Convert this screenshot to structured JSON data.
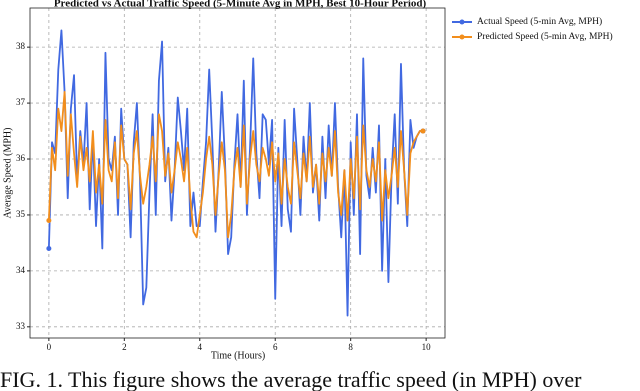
{
  "chart_data": {
    "type": "line",
    "title": "Predicted vs Actual Traffic Speed (5-Minute Avg in MPH, Best 10-Hour Period)",
    "x_label": "Time (Hours)",
    "y_label": "Average Speed (MPH)",
    "x": [
      0,
      0.083,
      0.167,
      0.25,
      0.333,
      0.417,
      0.5,
      0.583,
      0.667,
      0.75,
      0.833,
      0.917,
      1,
      1.083,
      1.167,
      1.25,
      1.333,
      1.417,
      1.5,
      1.583,
      1.667,
      1.75,
      1.833,
      1.917,
      2,
      2.083,
      2.167,
      2.25,
      2.333,
      2.417,
      2.5,
      2.583,
      2.667,
      2.75,
      2.833,
      2.917,
      3,
      3.083,
      3.167,
      3.25,
      3.333,
      3.417,
      3.5,
      3.583,
      3.667,
      3.75,
      3.833,
      3.917,
      4,
      4.083,
      4.167,
      4.25,
      4.333,
      4.417,
      4.5,
      4.583,
      4.667,
      4.75,
      4.833,
      4.917,
      5,
      5.083,
      5.167,
      5.25,
      5.333,
      5.417,
      5.5,
      5.583,
      5.667,
      5.75,
      5.833,
      5.917,
      6,
      6.083,
      6.167,
      6.25,
      6.333,
      6.417,
      6.5,
      6.583,
      6.667,
      6.75,
      6.833,
      6.917,
      7,
      7.083,
      7.167,
      7.25,
      7.333,
      7.417,
      7.5,
      7.583,
      7.667,
      7.75,
      7.833,
      7.917,
      8,
      8.083,
      8.167,
      8.25,
      8.333,
      8.417,
      8.5,
      8.583,
      8.667,
      8.75,
      8.833,
      8.917,
      9,
      9.083,
      9.167,
      9.25,
      9.333,
      9.417,
      9.5,
      9.583,
      9.667,
      9.75,
      9.833,
      9.917
    ],
    "series": [
      {
        "name": "Actual Speed (5-min Avg, MPH)",
        "color": "#4169e1",
        "values": [
          34.4,
          36.3,
          36.1,
          37.6,
          38.3,
          37.2,
          35.3,
          36.9,
          37.5,
          35.6,
          36.5,
          35.9,
          37.0,
          35.1,
          36.4,
          34.8,
          36.0,
          34.4,
          37.9,
          36.0,
          35.8,
          36.4,
          35.0,
          36.9,
          36.0,
          35.9,
          34.6,
          36.3,
          37.0,
          35.6,
          33.4,
          33.7,
          35.4,
          36.8,
          35.0,
          37.4,
          38.1,
          35.6,
          36.2,
          34.9,
          35.8,
          37.1,
          36.5,
          35.8,
          36.9,
          34.8,
          35.4,
          34.8,
          34.8,
          35.6,
          36.3,
          37.6,
          36.3,
          34.7,
          35.8,
          37.2,
          36.0,
          34.3,
          34.6,
          35.9,
          36.8,
          35.5,
          37.4,
          35.0,
          36.2,
          37.8,
          36.1,
          35.3,
          36.8,
          36.7,
          35.9,
          36.7,
          33.5,
          36.2,
          34.8,
          36.7,
          35.1,
          34.7,
          36.9,
          36.0,
          35.0,
          36.4,
          35.6,
          37.0,
          35.4,
          35.9,
          34.9,
          36.4,
          35.3,
          36.6,
          35.7,
          37.0,
          35.5,
          34.6,
          35.8,
          33.2,
          36.3,
          35.0,
          36.8,
          34.3,
          37.8,
          35.7,
          35.3,
          36.2,
          35.4,
          36.6,
          34.0,
          36.0,
          33.8,
          35.7,
          36.8,
          35.2,
          37.7,
          35.8,
          34.8,
          36.7,
          36.2,
          36.4,
          36.5,
          36.5
        ]
      },
      {
        "name": "Predicted Speed (5-min Avg, MPH)",
        "color": "#f28e1c",
        "values": [
          34.9,
          36.2,
          35.8,
          36.9,
          36.5,
          37.2,
          35.7,
          36.8,
          36.1,
          35.5,
          36.4,
          35.8,
          36.2,
          35.6,
          36.5,
          35.4,
          35.9,
          35.2,
          36.7,
          35.8,
          35.6,
          36.3,
          35.3,
          36.6,
          36.0,
          35.9,
          35.1,
          36.1,
          36.5,
          35.7,
          35.2,
          35.5,
          35.9,
          36.4,
          35.6,
          36.8,
          36.5,
          35.7,
          36.1,
          35.4,
          35.8,
          36.3,
          36.0,
          35.6,
          36.2,
          35.3,
          34.7,
          34.6,
          35.0,
          35.4,
          36.0,
          36.4,
          35.9,
          35.0,
          35.7,
          36.3,
          35.8,
          34.6,
          35.0,
          35.8,
          36.2,
          35.5,
          36.6,
          35.2,
          36.0,
          36.5,
          35.9,
          35.6,
          36.2,
          36.0,
          35.7,
          36.3,
          35.6,
          36.1,
          35.2,
          36.0,
          35.5,
          35.2,
          36.3,
          35.8,
          35.3,
          36.1,
          35.6,
          36.4,
          35.5,
          35.9,
          35.2,
          36.1,
          35.6,
          36.2,
          35.7,
          36.5,
          35.4,
          35.0,
          35.8,
          34.9,
          36.0,
          35.3,
          36.4,
          35.1,
          36.6,
          35.8,
          35.5,
          36.0,
          35.6,
          36.3,
          34.9,
          35.8,
          35.3,
          35.7,
          36.2,
          35.5,
          36.5,
          35.8,
          35.0,
          36.1,
          36.3,
          36.4,
          36.5,
          36.5
        ]
      }
    ],
    "xlim": [
      -0.5,
      10.5
    ],
    "ylim": [
      32.8,
      38.7
    ],
    "xticks": [
      0,
      2,
      4,
      6,
      8,
      10
    ],
    "yticks": [
      33,
      34,
      35,
      36,
      37,
      38
    ],
    "grid": true,
    "legend": "upper right"
  },
  "caption": "FIG. 1. This figure shows the average traffic speed (in MPH) over"
}
